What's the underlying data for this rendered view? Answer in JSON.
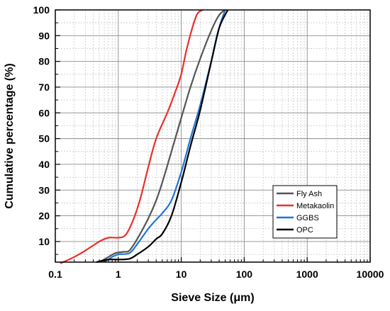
{
  "chart_data": {
    "type": "line",
    "xlabel": "Sieve Size (μm)",
    "ylabel": "Cumulative percentage (%)",
    "xscale": "log",
    "xlim": [
      0.1,
      10000
    ],
    "ylim": [
      2,
      100
    ],
    "x_ticks": [
      0.1,
      1,
      10,
      100,
      1000,
      10000
    ],
    "x_tick_labels": [
      "0.1",
      "1",
      "10",
      "100",
      "1000",
      "10000"
    ],
    "y_ticks": [
      10,
      20,
      30,
      40,
      50,
      60,
      70,
      80,
      90,
      100
    ],
    "y_tick_labels": [
      "10",
      "20",
      "30",
      "40",
      "50",
      "60",
      "70",
      "80",
      "90",
      "100"
    ],
    "grid": true,
    "legend_position": "bottom-right",
    "series": [
      {
        "name": "Fly Ash",
        "color": "#555555",
        "points": [
          [
            0.5,
            2
          ],
          [
            0.7,
            4
          ],
          [
            0.9,
            5.5
          ],
          [
            1.2,
            6
          ],
          [
            1.5,
            6.5
          ],
          [
            2,
            11
          ],
          [
            3,
            19
          ],
          [
            4,
            26
          ],
          [
            5,
            33
          ],
          [
            7,
            45
          ],
          [
            10,
            58
          ],
          [
            14,
            70
          ],
          [
            20,
            81
          ],
          [
            30,
            92
          ],
          [
            40,
            98
          ],
          [
            50,
            100
          ]
        ]
      },
      {
        "name": "Metakaolin",
        "color": "#e8302a",
        "points": [
          [
            0.12,
            1.5
          ],
          [
            0.2,
            4
          ],
          [
            0.3,
            6.5
          ],
          [
            0.5,
            10
          ],
          [
            0.7,
            11.5
          ],
          [
            1,
            11.5
          ],
          [
            1.3,
            12.5
          ],
          [
            1.7,
            18
          ],
          [
            2.2,
            26
          ],
          [
            3,
            39
          ],
          [
            4,
            50
          ],
          [
            6,
            60
          ],
          [
            8,
            68
          ],
          [
            10,
            75
          ],
          [
            12,
            84
          ],
          [
            15,
            93
          ],
          [
            18,
            98.5
          ],
          [
            22,
            100
          ]
        ]
      },
      {
        "name": "GGBS",
        "color": "#1f77d4",
        "points": [
          [
            0.6,
            2
          ],
          [
            0.8,
            4
          ],
          [
            1,
            5
          ],
          [
            1.5,
            5.5
          ],
          [
            2,
            9
          ],
          [
            3,
            15
          ],
          [
            4,
            18.5
          ],
          [
            5,
            21
          ],
          [
            7,
            26
          ],
          [
            10,
            37
          ],
          [
            14,
            50
          ],
          [
            20,
            63
          ],
          [
            30,
            80
          ],
          [
            40,
            93
          ],
          [
            50,
            100
          ]
        ]
      },
      {
        "name": "OPC",
        "color": "#000000",
        "points": [
          [
            0.45,
            2
          ],
          [
            0.7,
            3
          ],
          [
            1,
            3
          ],
          [
            1.5,
            3.3
          ],
          [
            2,
            5
          ],
          [
            3,
            8
          ],
          [
            4,
            11
          ],
          [
            5,
            13
          ],
          [
            7,
            20
          ],
          [
            10,
            33
          ],
          [
            14,
            47
          ],
          [
            20,
            61
          ],
          [
            30,
            80
          ],
          [
            40,
            93
          ],
          [
            55,
            100
          ]
        ]
      }
    ]
  }
}
